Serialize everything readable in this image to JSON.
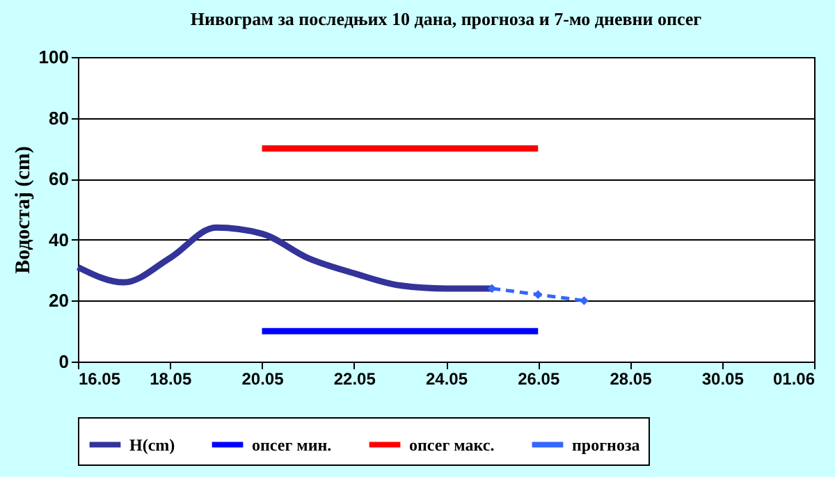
{
  "chart_data": {
    "type": "line",
    "title": "Нивограм за последњих 10 дана, прогноза и 7-мо дневни опсег",
    "ylabel": "Водостај (cm)",
    "xlim": [
      "--05-16",
      "--06-01"
    ],
    "xticks": [
      {
        "value": "--05-16",
        "label": "16.05"
      },
      {
        "value": "--05-18",
        "label": "18.05"
      },
      {
        "value": "--05-20",
        "label": "20.05"
      },
      {
        "value": "--05-22",
        "label": "22.05"
      },
      {
        "value": "--05-24",
        "label": "24.05"
      },
      {
        "value": "--05-26",
        "label": "26.05"
      },
      {
        "value": "--05-28",
        "label": "28.05"
      },
      {
        "value": "--05-30",
        "label": "30.05"
      },
      {
        "value": "--06-01",
        "label": "01.06"
      }
    ],
    "ylim": [
      0,
      100
    ],
    "yticks": [
      0,
      20,
      40,
      60,
      80,
      100
    ],
    "grid": "y",
    "legend": "bottom",
    "series": [
      {
        "name": "H(cm)",
        "color": "#333399",
        "x": [
          "--05-16",
          "--05-17",
          "--05-18",
          "--05-19",
          "--05-20",
          "--05-21",
          "--05-22",
          "--05-23",
          "--05-24",
          "--05-25"
        ],
        "values": [
          31,
          26,
          34,
          44,
          42,
          34,
          29,
          25,
          24,
          24
        ]
      },
      {
        "name": "опсег мин.",
        "color": "#0000ff",
        "x": [
          "--05-20",
          "--05-26"
        ],
        "values": [
          10,
          10
        ]
      },
      {
        "name": "опсег макс.",
        "color": "#ff0000",
        "x": [
          "--05-20",
          "--05-26"
        ],
        "values": [
          70,
          70
        ]
      },
      {
        "name": "прогноза",
        "color": "#3366ff",
        "x": [
          "--05-25",
          "--05-26",
          "--05-27"
        ],
        "values": [
          24,
          22,
          20
        ],
        "marker": "diamond",
        "line_style": "dashed"
      }
    ]
  }
}
